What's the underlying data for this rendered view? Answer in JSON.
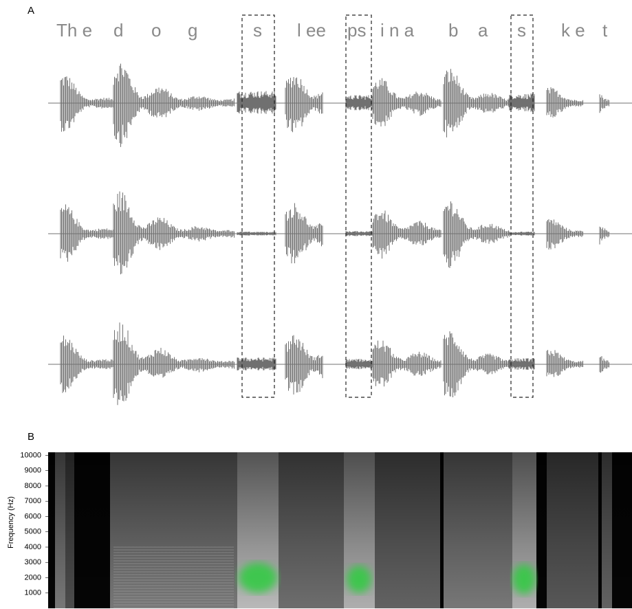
{
  "figure": {
    "panel_a": {
      "label": "A",
      "segments": [
        "Th e",
        "d",
        "o",
        "g",
        "s",
        "l ee",
        "ps",
        "i n a",
        "b",
        "a",
        "s",
        "k e",
        "t"
      ]
    },
    "panel_b": {
      "label": "B"
    }
  },
  "chart_data": {
    "type": "spectrogram",
    "ylabel": "Frequency (Hz)",
    "ylim": [
      0,
      10200
    ],
    "yticks": [
      1000,
      2000,
      3000,
      4000,
      5000,
      6000,
      7000,
      8000,
      9000,
      10000
    ]
  }
}
